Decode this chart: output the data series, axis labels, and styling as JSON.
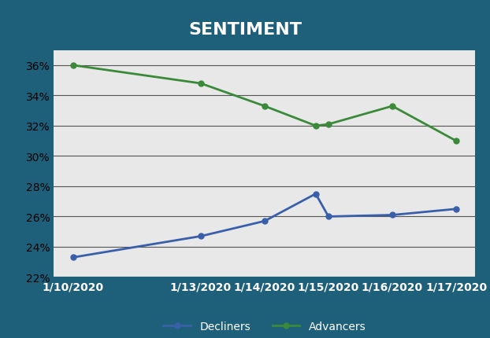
{
  "title": "SENTIMENT",
  "background_outer": "#1e5f7a",
  "background_inner": "#e8e8e8",
  "x_labels": [
    "1/10/2020",
    "1/13/2020",
    "1/14/2020",
    "1/15/2020",
    "1/16/2020",
    "1/17/2020"
  ],
  "x_positions": [
    0,
    2,
    3,
    4,
    5,
    6
  ],
  "decliners_x": [
    0,
    2,
    3,
    3.8,
    4,
    5,
    6
  ],
  "decliners_y": [
    23.3,
    24.7,
    25.7,
    27.5,
    26.0,
    26.1,
    26.5
  ],
  "advancers_x": [
    0,
    2,
    3,
    3.8,
    4,
    5,
    6
  ],
  "advancers_y": [
    36.0,
    34.8,
    33.3,
    32.0,
    32.1,
    33.3,
    31.0
  ],
  "decliners_color": "#3a5faa",
  "advancers_color": "#3a8a3a",
  "ylim": [
    22,
    37
  ],
  "yticks": [
    22,
    24,
    26,
    28,
    30,
    32,
    34,
    36
  ],
  "title_color": "#ffffff",
  "xlabel_color": "#ffffff",
  "title_fontsize": 16,
  "legend_fontsize": 10,
  "tick_fontsize": 10,
  "grid_color": "#555555",
  "marker_size": 5,
  "linewidth": 2.0
}
